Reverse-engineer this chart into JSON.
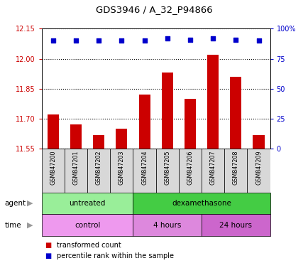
{
  "title": "GDS3946 / A_32_P94866",
  "samples": [
    "GSM847200",
    "GSM847201",
    "GSM847202",
    "GSM847203",
    "GSM847204",
    "GSM847205",
    "GSM847206",
    "GSM847207",
    "GSM847208",
    "GSM847209"
  ],
  "transformed_counts": [
    11.72,
    11.67,
    11.62,
    11.65,
    11.82,
    11.93,
    11.8,
    12.02,
    11.91,
    11.62
  ],
  "percentile_ranks": [
    90,
    90,
    90,
    90,
    90,
    92,
    91,
    92,
    91,
    90
  ],
  "ylim_left": [
    11.55,
    12.15
  ],
  "ylim_right": [
    0,
    100
  ],
  "yticks_left": [
    11.55,
    11.7,
    11.85,
    12.0,
    12.15
  ],
  "yticks_right": [
    0,
    25,
    50,
    75,
    100
  ],
  "ytick_labels_right": [
    "0",
    "25",
    "50",
    "75",
    "100%"
  ],
  "bar_color": "#cc0000",
  "dot_color": "#0000cc",
  "agent_labels": [
    {
      "text": "untreated",
      "start": 0,
      "end": 4,
      "color": "#99ee99"
    },
    {
      "text": "dexamethasone",
      "start": 4,
      "end": 10,
      "color": "#44cc44"
    }
  ],
  "time_labels": [
    {
      "text": "control",
      "start": 0,
      "end": 4,
      "color": "#ee99ee"
    },
    {
      "text": "4 hours",
      "start": 4,
      "end": 7,
      "color": "#dd88dd"
    },
    {
      "text": "24 hours",
      "start": 7,
      "end": 10,
      "color": "#cc66cc"
    }
  ],
  "legend_bar_label": "transformed count",
  "legend_dot_label": "percentile rank within the sample",
  "grid_color": "#000000",
  "tick_color_left": "#cc0000",
  "tick_color_right": "#0000cc",
  "label_area_bg": "#d8d8d8",
  "n_samples": 10
}
